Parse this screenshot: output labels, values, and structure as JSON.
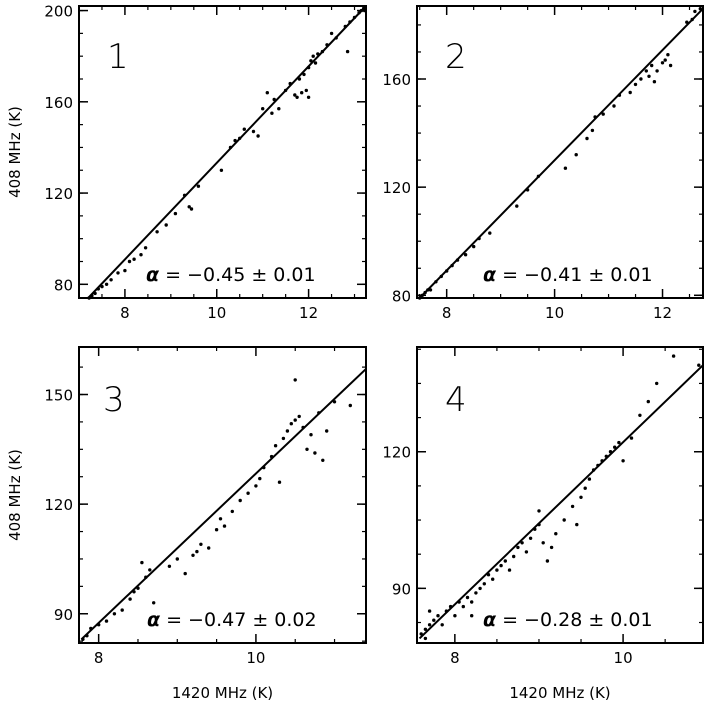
{
  "chart_data": [
    {
      "type": "scatter",
      "panel_label": "1",
      "annotation": {
        "symbol": "α",
        "text": " = −0.45 ± 0.01"
      },
      "ylabel": "408 MHz (K)",
      "xlabel": "",
      "xlim": [
        7.0,
        13.25
      ],
      "ylim": [
        74,
        202
      ],
      "xticks": [
        8,
        10,
        12
      ],
      "xtick_labels": [
        "8",
        "10",
        "12"
      ],
      "yticks": [
        80,
        120,
        160,
        200
      ],
      "ytick_labels": [
        "80",
        "120",
        "160",
        "200"
      ],
      "fit": {
        "x": [
          7.2,
          13.25
        ],
        "y": [
          74,
          202
        ]
      },
      "points": [
        [
          7.22,
          74
        ],
        [
          7.28,
          75
        ],
        [
          7.35,
          76
        ],
        [
          7.42,
          78
        ],
        [
          7.5,
          79
        ],
        [
          7.6,
          80
        ],
        [
          7.7,
          82
        ],
        [
          7.85,
          85
        ],
        [
          8.0,
          86
        ],
        [
          8.1,
          90
        ],
        [
          8.2,
          91
        ],
        [
          8.35,
          93
        ],
        [
          8.45,
          96
        ],
        [
          8.7,
          103
        ],
        [
          8.9,
          106
        ],
        [
          9.1,
          111
        ],
        [
          9.3,
          119
        ],
        [
          9.4,
          114
        ],
        [
          9.45,
          113
        ],
        [
          9.6,
          123
        ],
        [
          10.1,
          130
        ],
        [
          10.3,
          140
        ],
        [
          10.4,
          143
        ],
        [
          10.5,
          144
        ],
        [
          10.6,
          148
        ],
        [
          10.8,
          147
        ],
        [
          10.9,
          145
        ],
        [
          11.0,
          157
        ],
        [
          11.1,
          164
        ],
        [
          11.2,
          155
        ],
        [
          11.25,
          161
        ],
        [
          11.35,
          157
        ],
        [
          11.5,
          165
        ],
        [
          11.6,
          168
        ],
        [
          11.7,
          163
        ],
        [
          11.75,
          162
        ],
        [
          11.8,
          170
        ],
        [
          11.9,
          172
        ],
        [
          11.95,
          165
        ],
        [
          12.0,
          175
        ],
        [
          12.05,
          178
        ],
        [
          12.1,
          180
        ],
        [
          12.15,
          177
        ],
        [
          12.2,
          181
        ],
        [
          12.3,
          182
        ],
        [
          12.5,
          190
        ],
        [
          12.6,
          188
        ],
        [
          12.8,
          193
        ],
        [
          12.85,
          182
        ],
        [
          12.9,
          195
        ],
        [
          13.0,
          197
        ],
        [
          13.1,
          199
        ],
        [
          13.15,
          200
        ],
        [
          13.2,
          201
        ],
        [
          13.22,
          200
        ],
        [
          12.0,
          162
        ],
        [
          11.85,
          164
        ],
        [
          12.4,
          185
        ]
      ]
    },
    {
      "type": "scatter",
      "panel_label": "2",
      "annotation": {
        "symbol": "α",
        "text": " = −0.41 ± 0.01"
      },
      "ylabel": "",
      "xlabel": "",
      "xlim": [
        7.45,
        12.75
      ],
      "ylim": [
        79,
        187
      ],
      "xticks": [
        8,
        10,
        12
      ],
      "xtick_labels": [
        "8",
        "10",
        "12"
      ],
      "yticks": [
        80,
        120,
        160
      ],
      "ytick_labels": [
        "80",
        "120",
        "160"
      ],
      "fit": {
        "x": [
          7.5,
          12.75
        ],
        "y": [
          79,
          186
        ]
      },
      "points": [
        [
          7.5,
          79
        ],
        [
          7.55,
          80
        ],
        [
          7.6,
          81
        ],
        [
          7.65,
          82
        ],
        [
          7.7,
          82
        ],
        [
          7.8,
          85
        ],
        [
          7.9,
          87
        ],
        [
          8.0,
          89
        ],
        [
          8.1,
          91
        ],
        [
          8.2,
          93
        ],
        [
          8.35,
          95
        ],
        [
          8.5,
          98
        ],
        [
          8.6,
          101
        ],
        [
          8.8,
          103
        ],
        [
          9.3,
          113
        ],
        [
          9.5,
          119
        ],
        [
          9.7,
          124
        ],
        [
          10.2,
          127
        ],
        [
          10.4,
          132
        ],
        [
          10.6,
          138
        ],
        [
          10.7,
          141
        ],
        [
          10.75,
          146
        ],
        [
          10.9,
          147
        ],
        [
          11.1,
          150
        ],
        [
          11.2,
          154
        ],
        [
          11.4,
          155
        ],
        [
          11.5,
          158
        ],
        [
          11.6,
          160
        ],
        [
          11.7,
          163
        ],
        [
          11.75,
          161
        ],
        [
          11.8,
          165
        ],
        [
          11.85,
          159
        ],
        [
          11.9,
          163
        ],
        [
          12.0,
          166
        ],
        [
          12.05,
          167
        ],
        [
          12.1,
          169
        ],
        [
          12.15,
          165
        ],
        [
          12.45,
          181
        ],
        [
          12.55,
          182
        ],
        [
          12.6,
          185
        ],
        [
          12.7,
          186
        ]
      ]
    },
    {
      "type": "scatter",
      "panel_label": "3",
      "annotation": {
        "symbol": "α",
        "text": " = −0.47 ± 0.02"
      },
      "ylabel": "408 MHz (K)",
      "xlabel": "1420 MHz (K)",
      "xlim": [
        7.75,
        11.4
      ],
      "ylim": [
        82,
        163
      ],
      "xticks": [
        8,
        10
      ],
      "xtick_labels": [
        "8",
        "10"
      ],
      "yticks": [
        90,
        120,
        150
      ],
      "ytick_labels": [
        "90",
        "120",
        "150"
      ],
      "fit": {
        "x": [
          7.78,
          11.4
        ],
        "y": [
          83,
          157
        ]
      },
      "points": [
        [
          7.8,
          83
        ],
        [
          7.85,
          84
        ],
        [
          7.9,
          86
        ],
        [
          8.0,
          87
        ],
        [
          8.1,
          88
        ],
        [
          8.2,
          90
        ],
        [
          8.3,
          91
        ],
        [
          8.4,
          94
        ],
        [
          8.45,
          96
        ],
        [
          8.5,
          97
        ],
        [
          8.6,
          100
        ],
        [
          8.65,
          102
        ],
        [
          8.55,
          104
        ],
        [
          8.7,
          93
        ],
        [
          8.9,
          103
        ],
        [
          9.0,
          105
        ],
        [
          9.1,
          101
        ],
        [
          9.2,
          106
        ],
        [
          9.25,
          107
        ],
        [
          9.3,
          109
        ],
        [
          9.4,
          108
        ],
        [
          9.5,
          113
        ],
        [
          9.55,
          116
        ],
        [
          9.6,
          114
        ],
        [
          9.7,
          118
        ],
        [
          9.8,
          121
        ],
        [
          9.9,
          123
        ],
        [
          10.0,
          125
        ],
        [
          10.05,
          127
        ],
        [
          10.1,
          130
        ],
        [
          10.2,
          133
        ],
        [
          10.25,
          136
        ],
        [
          10.3,
          126
        ],
        [
          10.35,
          138
        ],
        [
          10.4,
          140
        ],
        [
          10.45,
          142
        ],
        [
          10.5,
          143
        ],
        [
          10.55,
          144
        ],
        [
          10.6,
          141
        ],
        [
          10.65,
          135
        ],
        [
          10.7,
          139
        ],
        [
          10.75,
          134
        ],
        [
          10.8,
          145
        ],
        [
          11.0,
          148
        ],
        [
          11.2,
          147
        ],
        [
          10.9,
          140
        ],
        [
          10.85,
          132
        ],
        [
          10.5,
          154
        ]
      ]
    },
    {
      "type": "scatter",
      "panel_label": "4",
      "annotation": {
        "symbol": "α",
        "text": " = −0.28 ± 0.01"
      },
      "ylabel": "",
      "xlabel": "1420 MHz (K)",
      "xlim": [
        7.55,
        10.95
      ],
      "ylim": [
        78,
        143
      ],
      "xticks": [
        8,
        10
      ],
      "xtick_labels": [
        "8",
        "10"
      ],
      "yticks": [
        90,
        120
      ],
      "ytick_labels": [
        "90",
        "120"
      ],
      "fit": {
        "x": [
          7.58,
          10.95
        ],
        "y": [
          79,
          139
        ]
      },
      "points": [
        [
          7.6,
          80
        ],
        [
          7.65,
          81
        ],
        [
          7.7,
          82
        ],
        [
          7.75,
          83
        ],
        [
          7.8,
          84
        ],
        [
          7.85,
          82
        ],
        [
          7.9,
          85
        ],
        [
          7.95,
          86
        ],
        [
          8.0,
          84
        ],
        [
          8.05,
          87
        ],
        [
          8.1,
          86
        ],
        [
          8.15,
          88
        ],
        [
          8.2,
          87
        ],
        [
          8.25,
          89
        ],
        [
          8.3,
          90
        ],
        [
          8.35,
          91
        ],
        [
          8.4,
          93
        ],
        [
          8.45,
          92
        ],
        [
          8.5,
          94
        ],
        [
          8.55,
          95
        ],
        [
          8.6,
          96
        ],
        [
          8.65,
          94
        ],
        [
          8.7,
          97
        ],
        [
          8.75,
          99
        ],
        [
          8.8,
          100
        ],
        [
          8.85,
          98
        ],
        [
          8.9,
          101
        ],
        [
          8.95,
          103
        ],
        [
          9.0,
          104
        ],
        [
          9.05,
          100
        ],
        [
          9.1,
          96
        ],
        [
          9.15,
          99
        ],
        [
          9.2,
          102
        ],
        [
          9.3,
          105
        ],
        [
          9.4,
          108
        ],
        [
          9.45,
          104
        ],
        [
          9.5,
          110
        ],
        [
          9.55,
          112
        ],
        [
          9.6,
          114
        ],
        [
          9.65,
          116
        ],
        [
          9.7,
          117
        ],
        [
          9.75,
          118
        ],
        [
          9.8,
          119
        ],
        [
          9.85,
          120
        ],
        [
          9.9,
          121
        ],
        [
          9.95,
          122
        ],
        [
          10.0,
          118
        ],
        [
          10.1,
          123
        ],
        [
          10.2,
          128
        ],
        [
          10.3,
          131
        ],
        [
          10.4,
          135
        ],
        [
          10.6,
          141
        ],
        [
          10.9,
          139
        ],
        [
          9.0,
          107
        ],
        [
          8.2,
          84
        ],
        [
          7.7,
          85
        ],
        [
          7.65,
          79
        ]
      ]
    }
  ]
}
